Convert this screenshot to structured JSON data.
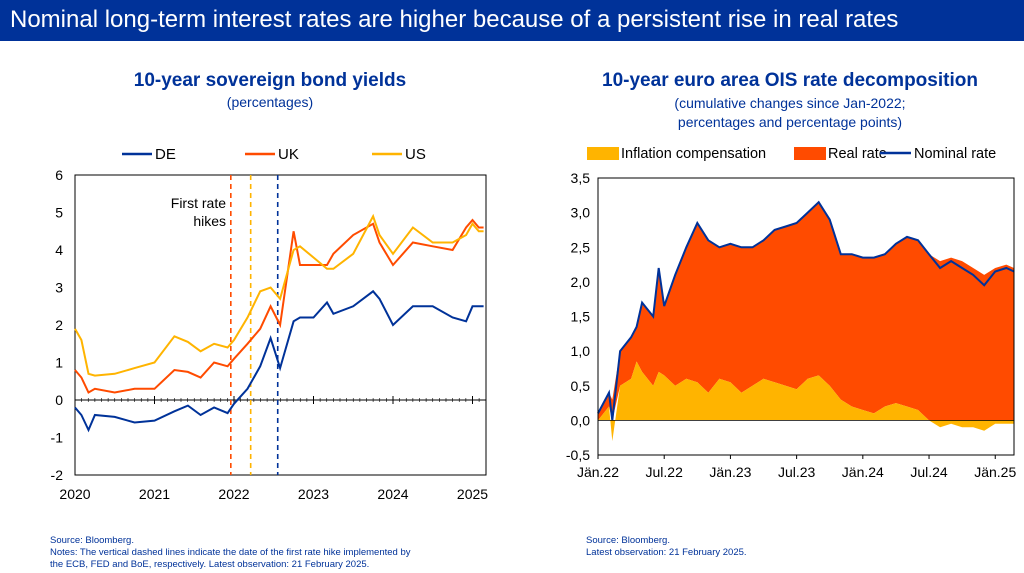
{
  "header": {
    "title": "Nominal long-term interest rates are higher because of a persistent rise in real rates"
  },
  "left_panel": {
    "title": "10-year sovereign bond yields",
    "subtitle": "(percentages)",
    "annotation_line1": "First rate",
    "annotation_line2": "hikes",
    "source": "Source: Bloomberg.",
    "notes_line1": "Notes: The vertical dashed lines indicate the date of the first rate hike implemented by",
    "notes_line2": "the ECB, FED and BoE, respectively. Latest observation: 21 February 2025."
  },
  "right_panel": {
    "title": "10-year euro area OIS rate decomposition",
    "subtitle_line1": "(cumulative changes since Jan-2022;",
    "subtitle_line2": "percentages and percentage points)",
    "source": "Source: Bloomberg.",
    "notes": "Latest observation: 21 February 2025."
  },
  "chart_data": [
    {
      "type": "line",
      "title": "10-year sovereign bond yields",
      "subtitle": "(percentages)",
      "ylim": [
        -2,
        6
      ],
      "yticks": [
        "-2",
        "-1",
        "0",
        "1",
        "2",
        "3",
        "4",
        "5",
        "6"
      ],
      "xticks": [
        "2020",
        "2021",
        "2022",
        "2023",
        "2024",
        "2025"
      ],
      "xlim": [
        2020.0,
        2025.17
      ],
      "legend_position": "top",
      "colors": {
        "DE": "#003299",
        "UK": "#ff4b00",
        "US": "#ffb400"
      },
      "vertical_lines": [
        {
          "label": "BoE",
          "x": 2021.96,
          "color": "#ff4b00"
        },
        {
          "label": "FED",
          "x": 2022.21,
          "color": "#ffb400"
        },
        {
          "label": "ECB",
          "x": 2022.55,
          "color": "#003299"
        }
      ],
      "series": [
        {
          "name": "DE",
          "x": [
            2020.0,
            2020.08,
            2020.17,
            2020.25,
            2020.5,
            2020.75,
            2021.0,
            2021.25,
            2021.42,
            2021.58,
            2021.75,
            2021.92,
            2022.0,
            2022.17,
            2022.33,
            2022.46,
            2022.58,
            2022.75,
            2022.83,
            2023.0,
            2023.17,
            2023.25,
            2023.5,
            2023.75,
            2023.83,
            2024.0,
            2024.25,
            2024.5,
            2024.75,
            2024.92,
            2025.0,
            2025.08,
            2025.14
          ],
          "y": [
            -0.2,
            -0.4,
            -0.8,
            -0.4,
            -0.45,
            -0.6,
            -0.55,
            -0.3,
            -0.15,
            -0.4,
            -0.2,
            -0.35,
            -0.1,
            0.3,
            0.9,
            1.65,
            0.85,
            2.1,
            2.2,
            2.2,
            2.6,
            2.3,
            2.5,
            2.9,
            2.7,
            2.0,
            2.5,
            2.5,
            2.2,
            2.1,
            2.5,
            2.5,
            2.5
          ]
        },
        {
          "name": "UK",
          "x": [
            2020.0,
            2020.08,
            2020.17,
            2020.25,
            2020.5,
            2020.75,
            2021.0,
            2021.25,
            2021.42,
            2021.58,
            2021.75,
            2021.92,
            2022.0,
            2022.17,
            2022.33,
            2022.46,
            2022.58,
            2022.75,
            2022.83,
            2023.0,
            2023.17,
            2023.25,
            2023.5,
            2023.75,
            2023.83,
            2024.0,
            2024.25,
            2024.5,
            2024.75,
            2024.92,
            2025.0,
            2025.08,
            2025.14
          ],
          "y": [
            0.8,
            0.6,
            0.2,
            0.3,
            0.2,
            0.3,
            0.3,
            0.8,
            0.75,
            0.6,
            1.0,
            0.9,
            1.1,
            1.5,
            1.9,
            2.5,
            2.0,
            4.5,
            3.6,
            3.6,
            3.6,
            3.9,
            4.4,
            4.7,
            4.2,
            3.6,
            4.2,
            4.1,
            4.0,
            4.6,
            4.8,
            4.6,
            4.6
          ]
        },
        {
          "name": "US",
          "x": [
            2020.0,
            2020.08,
            2020.17,
            2020.25,
            2020.5,
            2020.75,
            2021.0,
            2021.25,
            2021.42,
            2021.58,
            2021.75,
            2021.92,
            2022.0,
            2022.17,
            2022.33,
            2022.46,
            2022.58,
            2022.75,
            2022.83,
            2023.0,
            2023.17,
            2023.25,
            2023.5,
            2023.75,
            2023.83,
            2024.0,
            2024.25,
            2024.5,
            2024.75,
            2024.92,
            2025.0,
            2025.08,
            2025.14
          ],
          "y": [
            1.9,
            1.6,
            0.7,
            0.65,
            0.7,
            0.85,
            1.0,
            1.7,
            1.55,
            1.3,
            1.5,
            1.4,
            1.6,
            2.2,
            2.9,
            3.0,
            2.7,
            4.0,
            4.1,
            3.8,
            3.5,
            3.5,
            3.9,
            4.9,
            4.4,
            3.9,
            4.6,
            4.2,
            4.2,
            4.4,
            4.7,
            4.5,
            4.5
          ]
        }
      ]
    },
    {
      "type": "area",
      "title": "10-year euro area OIS rate decomposition",
      "subtitle": "(cumulative changes since Jan-2022; percentages and percentage points)",
      "ylim": [
        -0.5,
        3.5
      ],
      "yticks": [
        "-0,5",
        "0,0",
        "0,5",
        "1,0",
        "1,5",
        "2,0",
        "2,5",
        "3,0",
        "3,5"
      ],
      "xticks": [
        "Jän.22",
        "Jul.22",
        "Jän.23",
        "Jul.23",
        "Jän.24",
        "Jul.24",
        "Jän.25"
      ],
      "xlim": [
        0,
        37.7
      ],
      "legend_position": "top",
      "colors": {
        "Inflation compensation": "#ffb400",
        "Real rate": "#ff4b00",
        "Nominal rate": "#003299"
      },
      "x": [
        0,
        1,
        1.3,
        2,
        3,
        3.5,
        4,
        5,
        5.5,
        6,
        7,
        8,
        9,
        10,
        11,
        12,
        13,
        14,
        15,
        16,
        17,
        18,
        19,
        20,
        21,
        22,
        23,
        24,
        25,
        26,
        27,
        28,
        29,
        30,
        31,
        32,
        33,
        34,
        35,
        36,
        37,
        37.7
      ],
      "series": [
        {
          "name": "Inflation compensation",
          "stacked": true,
          "values": [
            0.0,
            0.2,
            -0.3,
            0.5,
            0.6,
            0.85,
            0.7,
            0.5,
            0.7,
            0.65,
            0.5,
            0.6,
            0.55,
            0.4,
            0.6,
            0.55,
            0.4,
            0.5,
            0.6,
            0.55,
            0.5,
            0.45,
            0.6,
            0.65,
            0.5,
            0.3,
            0.2,
            0.15,
            0.1,
            0.2,
            0.25,
            0.2,
            0.15,
            0.0,
            -0.1,
            -0.05,
            -0.1,
            -0.1,
            -0.15,
            -0.05,
            -0.05,
            -0.05
          ]
        },
        {
          "name": "Real rate",
          "stacked": true,
          "values": [
            0.1,
            0.2,
            0.3,
            0.5,
            0.6,
            0.5,
            1.0,
            1.0,
            1.5,
            1.0,
            1.6,
            1.9,
            2.3,
            2.2,
            1.9,
            2.0,
            2.1,
            2.0,
            2.0,
            2.2,
            2.3,
            2.4,
            2.4,
            2.5,
            2.4,
            2.1,
            2.2,
            2.2,
            2.25,
            2.2,
            2.3,
            2.45,
            2.45,
            2.4,
            2.3,
            2.35,
            2.3,
            2.2,
            2.1,
            2.2,
            2.25,
            2.2
          ]
        },
        {
          "name": "Nominal rate",
          "values": [
            0.1,
            0.4,
            0.0,
            1.0,
            1.2,
            1.35,
            1.7,
            1.5,
            2.2,
            1.65,
            2.1,
            2.5,
            2.85,
            2.6,
            2.5,
            2.55,
            2.5,
            2.5,
            2.6,
            2.75,
            2.8,
            2.85,
            3.0,
            3.15,
            2.9,
            2.4,
            2.4,
            2.35,
            2.35,
            2.4,
            2.55,
            2.65,
            2.6,
            2.4,
            2.2,
            2.3,
            2.2,
            2.1,
            1.95,
            2.15,
            2.2,
            2.15
          ]
        }
      ]
    }
  ]
}
